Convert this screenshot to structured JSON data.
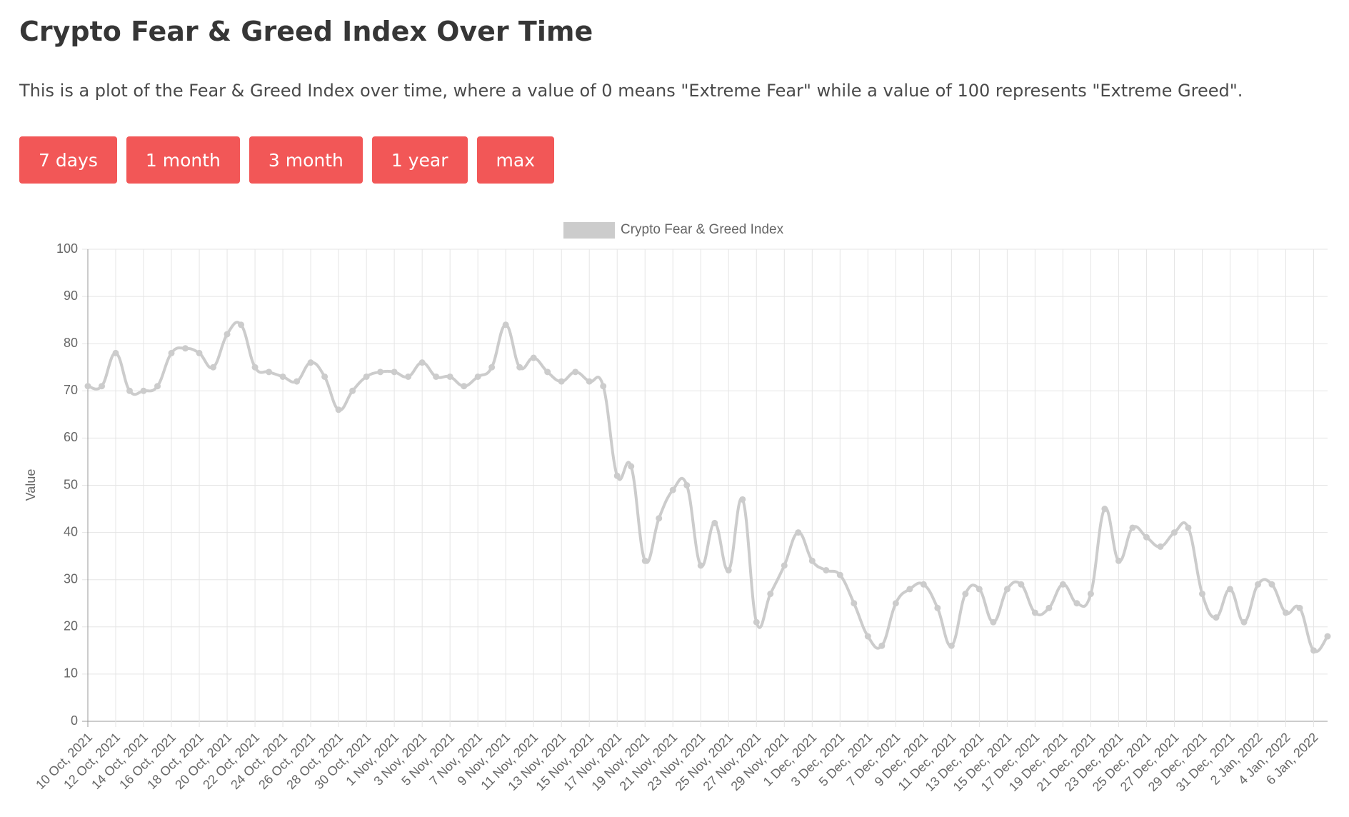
{
  "header": {
    "title": "Crypto Fear & Greed Index Over Time",
    "description": "This is a plot of the Fear & Greed Index over time, where a value of 0 means \"Extreme Fear\" while a value of 100 represents \"Extreme Greed\"."
  },
  "buttons": [
    "7 days",
    "1 month",
    "3 month",
    "1 year",
    "max"
  ],
  "chart_data": {
    "type": "line",
    "ylabel": "Value",
    "categories": [
      "10 Oct, 2021",
      null,
      "12 Oct, 2021",
      null,
      "14 Oct, 2021",
      null,
      "16 Oct, 2021",
      null,
      "18 Oct, 2021",
      null,
      "20 Oct, 2021",
      null,
      "22 Oct, 2021",
      null,
      "24 Oct, 2021",
      null,
      "26 Oct, 2021",
      null,
      "28 Oct, 2021",
      null,
      "30 Oct, 2021",
      null,
      "1 Nov, 2021",
      null,
      "3 Nov, 2021",
      null,
      "5 Nov, 2021",
      null,
      "7 Nov, 2021",
      null,
      "9 Nov, 2021",
      null,
      "11 Nov, 2021",
      null,
      "13 Nov, 2021",
      null,
      "15 Nov, 2021",
      null,
      "17 Nov, 2021",
      null,
      "19 Nov, 2021",
      null,
      "21 Nov, 2021",
      null,
      "23 Nov, 2021",
      null,
      "25 Nov, 2021",
      null,
      "27 Nov, 2021",
      null,
      "29 Nov, 2021",
      null,
      "1 Dec, 2021",
      null,
      "3 Dec, 2021",
      null,
      "5 Dec, 2021",
      null,
      "7 Dec, 2021",
      null,
      "9 Dec, 2021",
      null,
      "11 Dec, 2021",
      null,
      "13 Dec, 2021",
      null,
      "15 Dec, 2021",
      null,
      "17 Dec, 2021",
      null,
      "19 Dec, 2021",
      null,
      "21 Dec, 2021",
      null,
      "23 Dec, 2021",
      null,
      "25 Dec, 2021",
      null,
      "27 Dec, 2021",
      null,
      "29 Dec, 2021",
      null,
      "31 Dec, 2021",
      null,
      "2 Jan, 2022",
      null,
      "4 Jan, 2022",
      null,
      "6 Jan, 2022",
      null
    ],
    "series": [
      {
        "name": "Crypto Fear & Greed Index",
        "color": "#cccccc",
        "values": [
          71,
          71,
          78,
          70,
          70,
          71,
          78,
          79,
          78,
          75,
          82,
          84,
          75,
          74,
          73,
          72,
          76,
          73,
          66,
          70,
          73,
          74,
          74,
          73,
          76,
          73,
          73,
          71,
          73,
          75,
          84,
          75,
          77,
          74,
          72,
          74,
          72,
          71,
          52,
          54,
          34,
          43,
          49,
          50,
          33,
          42,
          32,
          47,
          21,
          27,
          33,
          40,
          34,
          32,
          31,
          25,
          18,
          16,
          25,
          28,
          29,
          24,
          16,
          27,
          28,
          21,
          28,
          29,
          23,
          24,
          29,
          25,
          27,
          45,
          34,
          41,
          39,
          37,
          40,
          41,
          27,
          22,
          28,
          21,
          29,
          29,
          23,
          24,
          15,
          18
        ]
      }
    ],
    "ylim": [
      0,
      100
    ],
    "yticks": [
      0,
      10,
      20,
      30,
      40,
      50,
      60,
      70,
      80,
      90,
      100
    ],
    "grid": true
  }
}
